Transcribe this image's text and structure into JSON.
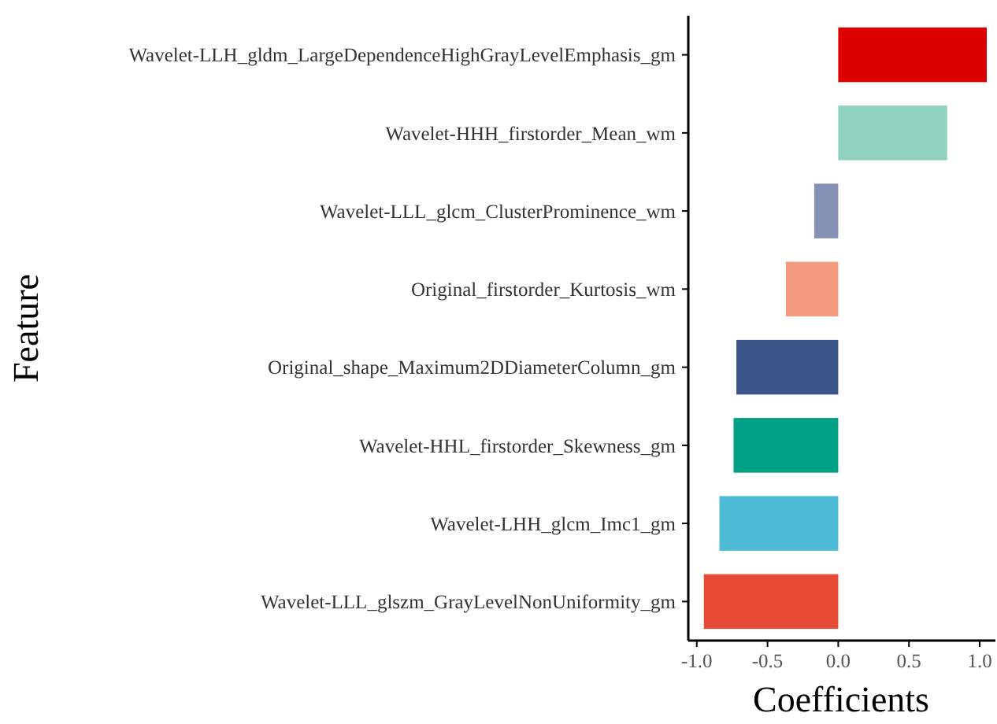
{
  "chart_data": {
    "type": "bar",
    "orientation": "horizontal",
    "xlabel": "Coefficients",
    "ylabel": "Feature",
    "categories": [
      "Wavelet-LLH_gldm_LargeDependenceHighGrayLevelEmphasis_gm",
      "Wavelet-HHH_firstorder_Mean_wm",
      "Wavelet-LLL_glcm_ClusterProminence_wm",
      "Original_firstorder_Kurtosis_wm",
      "Original_shape_Maximum2DDiameterColumn_gm",
      "Wavelet-HHL_firstorder_Skewness_gm",
      "Wavelet-LHH_glcm_Imc1_gm",
      "Wavelet-LLL_glszm_GrayLevelNonUniformity_gm"
    ],
    "values": [
      1.05,
      0.77,
      -0.17,
      -0.37,
      -0.72,
      -0.74,
      -0.84,
      -0.95
    ],
    "colors": [
      "#dc0000",
      "#91d1c2",
      "#8491b4",
      "#f39b7f",
      "#3c5488",
      "#00a087",
      "#4dbbd5",
      "#e64b35"
    ],
    "xlim": [
      -1.06,
      1.1
    ],
    "xticks": [
      {
        "value": -1,
        "label": "-1.0"
      },
      {
        "value": -0.5,
        "label": "-0.5"
      },
      {
        "value": 0,
        "label": "0.0"
      },
      {
        "value": 0.5,
        "label": "0.5"
      },
      {
        "value": 1,
        "label": "1.0"
      }
    ],
    "grid": false
  }
}
